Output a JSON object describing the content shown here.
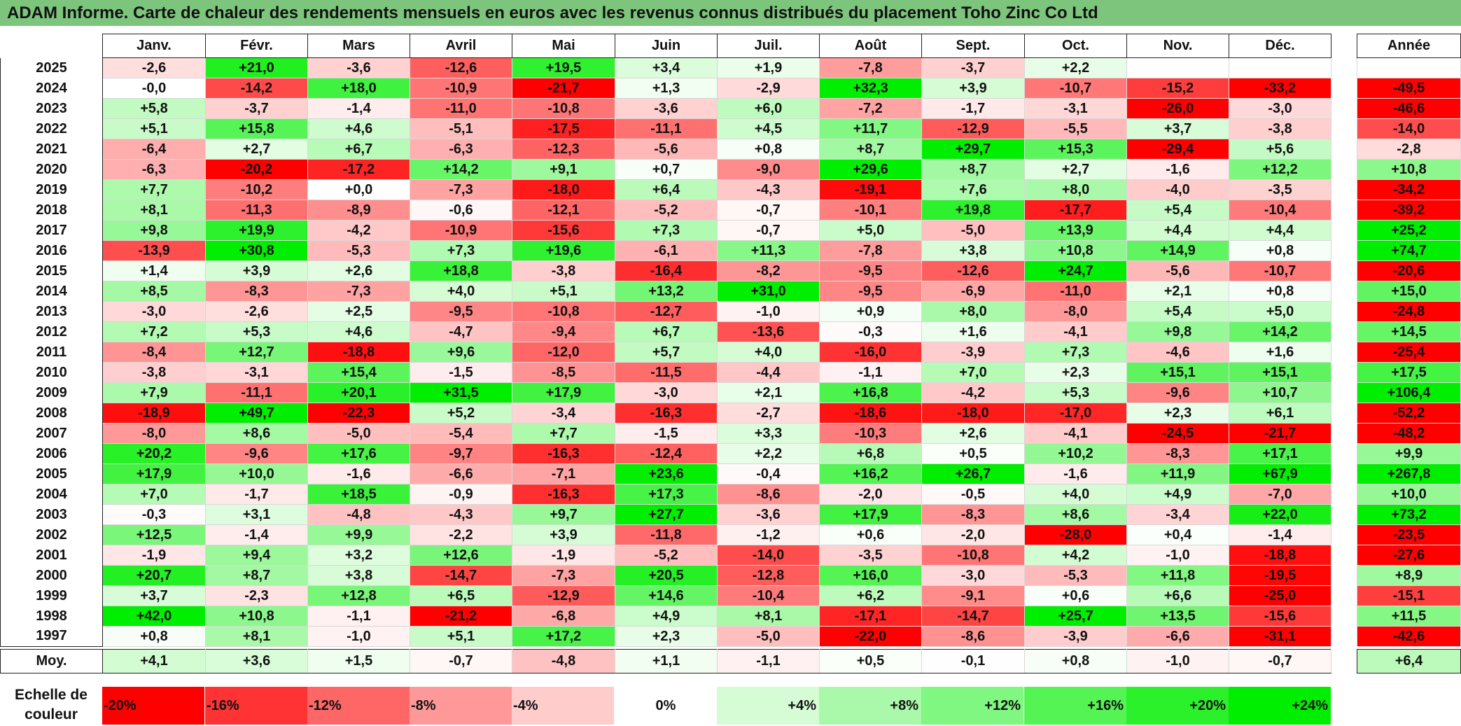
{
  "title": "ADAM Informe. Carte de chaleur des rendements mensuels en euros avec les revenus connus distribués du placement Toho Zinc Co Ltd",
  "colors": {
    "title_bg": "#7dc57d",
    "max_red": "#ff0000",
    "max_green": "#00ee00",
    "neutral": "#ffffff"
  },
  "chart_data": {
    "type": "heatmap",
    "title": "ADAM Informe. Carte de chaleur des rendements mensuels en euros avec les revenus connus distribués du placement Toho Zinc Co Ltd",
    "months": [
      "Janv.",
      "Févr.",
      "Mars",
      "Avril",
      "Mai",
      "Juin",
      "Juil.",
      "Août",
      "Sept.",
      "Oct.",
      "Nov.",
      "Déc."
    ],
    "annual_header": "Année",
    "rows": [
      {
        "year": "2025",
        "values": [
          "-2,6",
          "+21,0",
          "-3,6",
          "-12,6",
          "+19,5",
          "+3,4",
          "+1,9",
          "-7,8",
          "-3,7",
          "+2,2",
          "",
          ""
        ],
        "annual": ""
      },
      {
        "year": "2024",
        "values": [
          "-0,0",
          "-14,2",
          "+18,0",
          "-10,9",
          "-21,7",
          "+1,3",
          "-2,9",
          "+32,3",
          "+3,9",
          "-10,7",
          "-15,2",
          "-33,2"
        ],
        "annual": "-49,5"
      },
      {
        "year": "2023",
        "values": [
          "+5,8",
          "-3,7",
          "-1,4",
          "-11,0",
          "-10,8",
          "-3,6",
          "+6,0",
          "-7,2",
          "-1,7",
          "-3,1",
          "-26,0",
          "-3,0"
        ],
        "annual": "-46,6"
      },
      {
        "year": "2022",
        "values": [
          "+5,1",
          "+15,8",
          "+4,6",
          "-5,1",
          "-17,5",
          "-11,1",
          "+4,5",
          "+11,7",
          "-12,9",
          "-5,5",
          "+3,7",
          "-3,8"
        ],
        "annual": "-14,0"
      },
      {
        "year": "2021",
        "values": [
          "-6,4",
          "+2,7",
          "+6,7",
          "-6,3",
          "-12,3",
          "-5,6",
          "+0,8",
          "+8,7",
          "+29,7",
          "+15,3",
          "-29,4",
          "+5,6"
        ],
        "annual": "-2,8"
      },
      {
        "year": "2020",
        "values": [
          "-6,3",
          "-20,2",
          "-17,2",
          "+14,2",
          "+9,1",
          "+0,7",
          "-9,0",
          "+29,6",
          "+8,7",
          "+2,7",
          "-1,6",
          "+12,2"
        ],
        "annual": "+10,8"
      },
      {
        "year": "2019",
        "values": [
          "+7,7",
          "-10,2",
          "+0,0",
          "-7,3",
          "-18,0",
          "+6,4",
          "-4,3",
          "-19,1",
          "+7,6",
          "+8,0",
          "-4,0",
          "-3,5"
        ],
        "annual": "-34,2"
      },
      {
        "year": "2018",
        "values": [
          "+8,1",
          "-11,3",
          "-8,9",
          "-0,6",
          "-12,1",
          "-5,2",
          "-0,7",
          "-10,1",
          "+19,8",
          "-17,7",
          "+5,4",
          "-10,4"
        ],
        "annual": "-39,2"
      },
      {
        "year": "2017",
        "values": [
          "+9,8",
          "+19,9",
          "-4,2",
          "-10,9",
          "-15,6",
          "+7,3",
          "-0,7",
          "+5,0",
          "-5,0",
          "+13,9",
          "+4,4",
          "+4,4"
        ],
        "annual": "+25,2"
      },
      {
        "year": "2016",
        "values": [
          "-13,9",
          "+30,8",
          "-5,3",
          "+7,3",
          "+19,6",
          "-6,1",
          "+11,3",
          "-7,8",
          "+3,8",
          "+10,8",
          "+14,9",
          "+0,8"
        ],
        "annual": "+74,7"
      },
      {
        "year": "2015",
        "values": [
          "+1,4",
          "+3,9",
          "+2,6",
          "+18,8",
          "-3,8",
          "-16,4",
          "-8,2",
          "-9,5",
          "-12,6",
          "+24,7",
          "-5,6",
          "-10,7"
        ],
        "annual": "-20,6"
      },
      {
        "year": "2014",
        "values": [
          "+8,5",
          "-8,3",
          "-7,3",
          "+4,0",
          "+5,1",
          "+13,2",
          "+31,0",
          "-9,5",
          "-6,9",
          "-11,0",
          "+2,1",
          "+0,8"
        ],
        "annual": "+15,0"
      },
      {
        "year": "2013",
        "values": [
          "-3,0",
          "-2,6",
          "+2,5",
          "-9,5",
          "-10,8",
          "-12,7",
          "-1,0",
          "+0,9",
          "+8,0",
          "-8,0",
          "+5,4",
          "+5,0"
        ],
        "annual": "-24,8"
      },
      {
        "year": "2012",
        "values": [
          "+7,2",
          "+5,3",
          "+4,6",
          "-4,7",
          "-9,4",
          "+6,7",
          "-13,6",
          "-0,3",
          "+1,6",
          "-4,1",
          "+9,8",
          "+14,2"
        ],
        "annual": "+14,5"
      },
      {
        "year": "2011",
        "values": [
          "-8,4",
          "+12,7",
          "-18,8",
          "+9,6",
          "-12,0",
          "+5,7",
          "+4,0",
          "-16,0",
          "-3,9",
          "+7,3",
          "-4,6",
          "+1,6"
        ],
        "annual": "-25,4"
      },
      {
        "year": "2010",
        "values": [
          "-3,8",
          "-3,1",
          "+15,4",
          "-1,5",
          "-8,5",
          "-11,5",
          "-4,4",
          "-1,1",
          "+7,0",
          "+2,3",
          "+15,1",
          "+15,1"
        ],
        "annual": "+17,5"
      },
      {
        "year": "2009",
        "values": [
          "+7,9",
          "-11,1",
          "+20,1",
          "+31,5",
          "+17,9",
          "-3,0",
          "+2,1",
          "+16,8",
          "-4,2",
          "+5,3",
          "-9,6",
          "+10,7"
        ],
        "annual": "+106,4"
      },
      {
        "year": "2008",
        "values": [
          "-18,9",
          "+49,7",
          "-22,3",
          "+5,2",
          "-3,4",
          "-16,3",
          "-2,7",
          "-18,6",
          "-18,0",
          "-17,0",
          "+2,3",
          "+6,1"
        ],
        "annual": "-52,2"
      },
      {
        "year": "2007",
        "values": [
          "-8,0",
          "+8,6",
          "-5,0",
          "-5,4",
          "+7,7",
          "-1,5",
          "+3,3",
          "-10,3",
          "+2,6",
          "-4,1",
          "-24,5",
          "-21,7"
        ],
        "annual": "-48,2"
      },
      {
        "year": "2006",
        "values": [
          "+20,2",
          "-9,6",
          "+17,6",
          "-9,7",
          "-16,3",
          "-12,4",
          "+2,2",
          "+6,8",
          "+0,5",
          "+10,2",
          "-8,3",
          "+17,1"
        ],
        "annual": "+9,9"
      },
      {
        "year": "2005",
        "values": [
          "+17,9",
          "+10,0",
          "-1,6",
          "-6,6",
          "-7,1",
          "+23,6",
          "-0,4",
          "+16,2",
          "+26,7",
          "-1,6",
          "+11,9",
          "+67,9"
        ],
        "annual": "+267,8"
      },
      {
        "year": "2004",
        "values": [
          "+7,0",
          "-1,7",
          "+18,5",
          "-0,9",
          "-16,3",
          "+17,3",
          "-8,6",
          "-2,0",
          "-0,5",
          "+4,0",
          "+4,9",
          "-7,0"
        ],
        "annual": "+10,0"
      },
      {
        "year": "2003",
        "values": [
          "-0,3",
          "+3,1",
          "-4,8",
          "-4,3",
          "+9,7",
          "+27,7",
          "-3,6",
          "+17,9",
          "-8,3",
          "+8,6",
          "-3,4",
          "+22,0"
        ],
        "annual": "+73,2"
      },
      {
        "year": "2002",
        "values": [
          "+12,5",
          "-1,4",
          "+9,9",
          "-2,2",
          "+3,9",
          "-11,8",
          "-1,2",
          "+0,6",
          "-2,0",
          "-28,0",
          "+0,4",
          "-1,4"
        ],
        "annual": "-23,5"
      },
      {
        "year": "2001",
        "values": [
          "-1,9",
          "+9,4",
          "+3,2",
          "+12,6",
          "-1,9",
          "-5,2",
          "-14,0",
          "-3,5",
          "-10,8",
          "+4,2",
          "-1,0",
          "-18,8"
        ],
        "annual": "-27,6"
      },
      {
        "year": "2000",
        "values": [
          "+20,7",
          "+8,7",
          "+3,8",
          "-14,7",
          "-7,3",
          "+20,5",
          "-12,8",
          "+16,0",
          "-3,0",
          "-5,3",
          "+11,8",
          "-19,5"
        ],
        "annual": "+8,9"
      },
      {
        "year": "1999",
        "values": [
          "+3,7",
          "-2,3",
          "+12,8",
          "+6,5",
          "-12,9",
          "+14,6",
          "-10,4",
          "+6,2",
          "-9,1",
          "+0,6",
          "+6,6",
          "-25,0"
        ],
        "annual": "-15,1"
      },
      {
        "year": "1998",
        "values": [
          "+42,0",
          "+10,8",
          "-1,1",
          "-21,2",
          "-6,8",
          "+4,9",
          "+8,1",
          "-17,1",
          "-14,7",
          "+25,7",
          "+13,5",
          "-15,6"
        ],
        "annual": "+11,5"
      },
      {
        "year": "1997",
        "values": [
          "+0,8",
          "+8,1",
          "-1,0",
          "+5,1",
          "+17,2",
          "+2,3",
          "-5,0",
          "-22,0",
          "-8,6",
          "-3,9",
          "-6,6",
          "-31,1"
        ],
        "annual": "-42,6"
      }
    ],
    "average": {
      "label": "Moy.",
      "values": [
        "+4,1",
        "+3,6",
        "+1,5",
        "-0,7",
        "-4,8",
        "+1,1",
        "-1,1",
        "+0,5",
        "-0,1",
        "+0,8",
        "-1,0",
        "-0,7"
      ],
      "annual": "+6,4"
    },
    "scale": {
      "label_line1": "Echelle de",
      "label_line2": "couleur",
      "steps": [
        {
          "label": "-20%",
          "value": -20
        },
        {
          "label": "-16%",
          "value": -16
        },
        {
          "label": "-12%",
          "value": -12
        },
        {
          "label": "-8%",
          "value": -8
        },
        {
          "label": "-4%",
          "value": -4
        },
        {
          "label": "0%",
          "value": 0
        },
        {
          "label": "+4%",
          "value": 4
        },
        {
          "label": "+8%",
          "value": 8
        },
        {
          "label": "+12%",
          "value": 12
        },
        {
          "label": "+16%",
          "value": 16
        },
        {
          "label": "+20%",
          "value": 20
        },
        {
          "label": "+24%",
          "value": 24
        }
      ]
    }
  }
}
